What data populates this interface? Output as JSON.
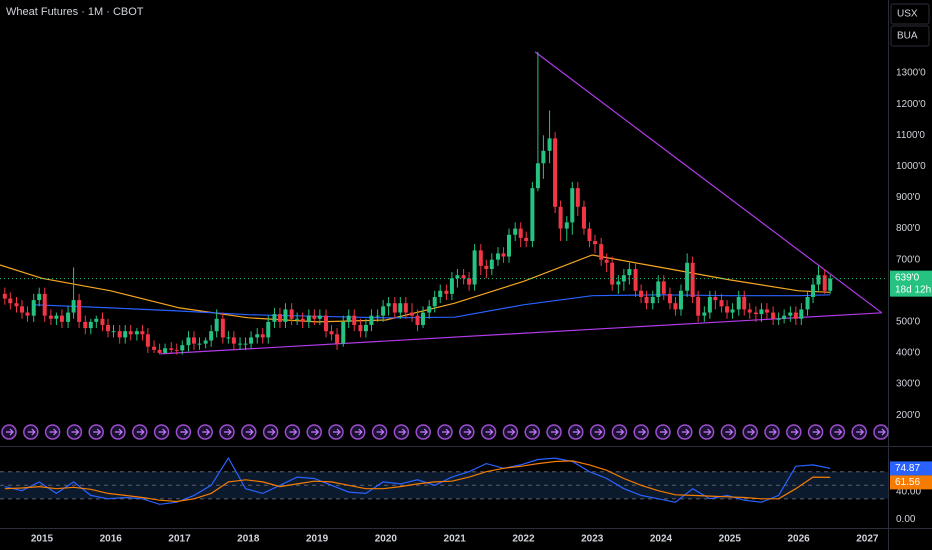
{
  "chart_data": [
    {
      "type": "candlestick",
      "title": "Wheat Futures · 1M · CBOT",
      "currency": "USX",
      "unit": "BUA",
      "up_color": "#26c281",
      "down_color": "#f23645",
      "xlim": [
        2014.39,
        2027.3
      ],
      "ylim": [
        178,
        1535
      ],
      "grid": false,
      "yticks": [
        {
          "value": 200,
          "label": "200'0"
        },
        {
          "value": 300,
          "label": "300'0"
        },
        {
          "value": 400,
          "label": "400'0"
        },
        {
          "value": 500,
          "label": "500'0"
        },
        {
          "value": 700,
          "label": "700'0"
        },
        {
          "value": 800,
          "label": "800'0"
        },
        {
          "value": 900,
          "label": "900'0"
        },
        {
          "value": 1000,
          "label": "1000'0"
        },
        {
          "value": 1100,
          "label": "1100'0"
        },
        {
          "value": 1200,
          "label": "1200'0"
        },
        {
          "value": 1300,
          "label": "1300'0"
        }
      ],
      "x": [
        2014.46,
        2014.54,
        2014.63,
        2014.71,
        2014.79,
        2014.88,
        2014.96,
        2015.04,
        2015.13,
        2015.21,
        2015.29,
        2015.38,
        2015.46,
        2015.54,
        2015.63,
        2015.71,
        2015.79,
        2015.88,
        2015.96,
        2016.04,
        2016.13,
        2016.21,
        2016.29,
        2016.38,
        2016.46,
        2016.54,
        2016.63,
        2016.71,
        2016.79,
        2016.88,
        2016.96,
        2017.04,
        2017.13,
        2017.21,
        2017.29,
        2017.38,
        2017.46,
        2017.54,
        2017.63,
        2017.71,
        2017.79,
        2017.88,
        2017.96,
        2018.04,
        2018.13,
        2018.21,
        2018.29,
        2018.38,
        2018.46,
        2018.54,
        2018.63,
        2018.71,
        2018.79,
        2018.88,
        2018.96,
        2019.04,
        2019.13,
        2019.21,
        2019.29,
        2019.38,
        2019.46,
        2019.54,
        2019.63,
        2019.71,
        2019.79,
        2019.88,
        2019.96,
        2020.04,
        2020.13,
        2020.21,
        2020.29,
        2020.38,
        2020.46,
        2020.54,
        2020.63,
        2020.71,
        2020.79,
        2020.88,
        2020.96,
        2021.04,
        2021.13,
        2021.21,
        2021.29,
        2021.38,
        2021.46,
        2021.54,
        2021.63,
        2021.71,
        2021.79,
        2021.88,
        2021.96,
        2022.04,
        2022.13,
        2022.21,
        2022.29,
        2022.38,
        2022.46,
        2022.54,
        2022.63,
        2022.71,
        2022.79,
        2022.88,
        2022.96,
        2023.04,
        2023.13,
        2023.21,
        2023.29,
        2023.38,
        2023.46,
        2023.54,
        2023.63,
        2023.71,
        2023.79,
        2023.88,
        2023.96,
        2024.04,
        2024.13,
        2024.21,
        2024.29,
        2024.38,
        2024.46,
        2024.54,
        2024.63,
        2024.71,
        2024.79,
        2024.88,
        2024.96,
        2025.04,
        2025.13,
        2025.21,
        2025.29,
        2025.38,
        2025.46,
        2025.54,
        2025.63,
        2025.71,
        2025.79,
        2025.88,
        2025.96,
        2026.04,
        2026.13,
        2026.21,
        2026.29,
        2026.38,
        2026.46
      ],
      "open": [
        590,
        575,
        560,
        550,
        530,
        520,
        570,
        590,
        520,
        510,
        520,
        500,
        530,
        570,
        500,
        480,
        500,
        510,
        490,
        470,
        470,
        450,
        470,
        460,
        470,
        460,
        420,
        410,
        400,
        415,
        410,
        408,
        425,
        450,
        430,
        430,
        440,
        470,
        510,
        450,
        450,
        430,
        430,
        430,
        450,
        460,
        450,
        500,
        525,
        500,
        540,
        510,
        510,
        500,
        520,
        510,
        520,
        470,
        460,
        430,
        500,
        520,
        490,
        470,
        490,
        520,
        520,
        550,
        560,
        530,
        560,
        530,
        520,
        490,
        530,
        550,
        580,
        600,
        590,
        640,
        650,
        640,
        620,
        730,
        680,
        670,
        700,
        720,
        710,
        780,
        800,
        770,
        760,
        930,
        1010,
        1050,
        1090,
        870,
        800,
        820,
        930,
        870,
        800,
        760,
        750,
        700,
        690,
        620,
        630,
        650,
        670,
        600,
        580,
        560,
        580,
        630,
        590,
        560,
        540,
        600,
        690,
        580,
        520,
        530,
        580,
        570,
        550,
        530,
        540,
        580,
        540,
        530,
        525,
        540,
        530,
        510,
        510,
        520,
        530,
        510,
        540,
        580,
        620,
        650,
        600
      ],
      "high": [
        610,
        595,
        580,
        570,
        550,
        590,
        610,
        610,
        540,
        530,
        540,
        550,
        675,
        590,
        520,
        510,
        520,
        530,
        510,
        490,
        490,
        490,
        490,
        480,
        490,
        480,
        440,
        430,
        430,
        435,
        430,
        440,
        470,
        470,
        450,
        450,
        490,
        540,
        530,
        470,
        470,
        450,
        450,
        470,
        480,
        480,
        520,
        545,
        545,
        560,
        560,
        530,
        530,
        540,
        540,
        540,
        540,
        490,
        480,
        520,
        540,
        540,
        510,
        510,
        540,
        540,
        570,
        580,
        580,
        580,
        580,
        560,
        540,
        550,
        570,
        600,
        620,
        620,
        660,
        670,
        670,
        660,
        750,
        750,
        700,
        720,
        740,
        740,
        800,
        820,
        820,
        790,
        950,
        1368,
        1100,
        1180,
        1110,
        890,
        840,
        950,
        950,
        890,
        820,
        780,
        770,
        720,
        710,
        650,
        670,
        690,
        690,
        620,
        600,
        600,
        650,
        650,
        610,
        580,
        620,
        720,
        710,
        600,
        550,
        600,
        600,
        590,
        570,
        560,
        600,
        600,
        560,
        550,
        560,
        560,
        550,
        530,
        540,
        550,
        550,
        560,
        600,
        640,
        680,
        670,
        650
      ],
      "low": [
        555,
        540,
        530,
        510,
        500,
        500,
        550,
        500,
        490,
        490,
        480,
        480,
        510,
        480,
        460,
        460,
        480,
        470,
        450,
        450,
        430,
        430,
        440,
        440,
        440,
        400,
        400,
        395,
        398,
        400,
        395,
        395,
        405,
        410,
        410,
        415,
        420,
        450,
        430,
        430,
        410,
        410,
        410,
        415,
        430,
        430,
        430,
        480,
        480,
        480,
        490,
        490,
        480,
        480,
        490,
        490,
        450,
        440,
        410,
        420,
        480,
        470,
        450,
        450,
        470,
        500,
        500,
        520,
        510,
        510,
        510,
        500,
        470,
        480,
        510,
        530,
        560,
        570,
        570,
        610,
        620,
        600,
        600,
        650,
        640,
        650,
        680,
        690,
        690,
        760,
        740,
        740,
        740,
        920,
        960,
        1010,
        850,
        760,
        760,
        780,
        840,
        780,
        740,
        720,
        680,
        660,
        600,
        590,
        600,
        620,
        580,
        560,
        540,
        540,
        560,
        570,
        540,
        520,
        520,
        580,
        560,
        500,
        500,
        510,
        540,
        530,
        510,
        510,
        520,
        520,
        510,
        500,
        500,
        510,
        490,
        490,
        495,
        500,
        490,
        490,
        520,
        560,
        600,
        590,
        590
      ],
      "close": [
        575,
        560,
        550,
        530,
        520,
        570,
        590,
        520,
        510,
        520,
        500,
        530,
        570,
        500,
        480,
        500,
        510,
        490,
        470,
        470,
        450,
        470,
        460,
        470,
        460,
        420,
        410,
        400,
        415,
        410,
        408,
        425,
        450,
        430,
        430,
        440,
        470,
        510,
        450,
        450,
        430,
        430,
        430,
        450,
        460,
        450,
        500,
        525,
        500,
        540,
        510,
        510,
        500,
        520,
        510,
        520,
        470,
        460,
        430,
        500,
        520,
        490,
        470,
        490,
        520,
        520,
        550,
        560,
        530,
        560,
        530,
        520,
        490,
        530,
        550,
        580,
        600,
        590,
        640,
        650,
        640,
        620,
        730,
        680,
        670,
        700,
        720,
        710,
        780,
        800,
        770,
        760,
        930,
        1010,
        1050,
        1090,
        870,
        800,
        820,
        930,
        870,
        800,
        760,
        750,
        700,
        690,
        620,
        630,
        650,
        670,
        600,
        580,
        560,
        580,
        630,
        590,
        560,
        540,
        600,
        690,
        580,
        520,
        530,
        580,
        570,
        550,
        530,
        540,
        580,
        540,
        530,
        525,
        540,
        530,
        510,
        510,
        520,
        530,
        510,
        540,
        580,
        620,
        650,
        600,
        639
      ],
      "lines": [
        {
          "color": "#f5a623",
          "x": [
            2014.39,
            2015,
            2016,
            2017,
            2018,
            2019,
            2020,
            2021,
            2022,
            2023,
            2024,
            2025,
            2026,
            2026.46
          ],
          "values": [
            683,
            640,
            600,
            545,
            513,
            500,
            506,
            560,
            630,
            715,
            675,
            635,
            600,
            595
          ]
        },
        {
          "color": "#2962ff",
          "x": [
            2014.9,
            2016,
            2017,
            2018,
            2019,
            2020,
            2021,
            2022,
            2023,
            2024,
            2025,
            2026,
            2026.46
          ],
          "values": [
            555,
            545,
            535,
            523,
            518,
            513,
            515,
            555,
            584,
            587,
            584,
            584,
            587
          ]
        }
      ],
      "trendlines": [
        {
          "color": "#b23ae8",
          "x": [
            2022.17,
            2027.21
          ],
          "values": [
            1368,
            529
          ]
        },
        {
          "color": "#b23ae8",
          "x": [
            2016.72,
            2027.21
          ],
          "values": [
            397,
            529
          ]
        }
      ],
      "last_price": {
        "value": 639,
        "label": "639'0"
      },
      "countdown": "18d 12h"
    },
    {
      "type": "line",
      "xlim": [
        2014.39,
        2027.3
      ],
      "ylim": [
        -13,
        102
      ],
      "xticks": [
        2015,
        2016,
        2017,
        2018,
        2019,
        2020,
        2021,
        2022,
        2023,
        2024,
        2025,
        2026,
        2027
      ],
      "yticks": [
        {
          "value": 40,
          "label": "40.00"
        },
        {
          "value": 0,
          "label": "0.00"
        }
      ],
      "levels": [
        70,
        50,
        30
      ],
      "x": [
        2014.46,
        2014.71,
        2014.96,
        2015.21,
        2015.46,
        2015.71,
        2015.96,
        2016.21,
        2016.46,
        2016.71,
        2016.96,
        2017.21,
        2017.46,
        2017.71,
        2017.96,
        2018.21,
        2018.46,
        2018.71,
        2018.96,
        2019.21,
        2019.46,
        2019.71,
        2019.96,
        2020.21,
        2020.46,
        2020.71,
        2020.96,
        2021.21,
        2021.46,
        2021.71,
        2021.96,
        2022.21,
        2022.46,
        2022.71,
        2022.96,
        2023.21,
        2023.46,
        2023.71,
        2023.96,
        2024.21,
        2024.46,
        2024.71,
        2024.96,
        2025.21,
        2025.46,
        2025.71,
        2025.96,
        2026.21,
        2026.46
      ],
      "series": [
        {
          "color": "#2962ff",
          "values": [
            48,
            42,
            55,
            38,
            55,
            35,
            30,
            32,
            30,
            22,
            25,
            35,
            50,
            90,
            45,
            38,
            50,
            62,
            60,
            50,
            40,
            38,
            55,
            52,
            58,
            50,
            62,
            70,
            82,
            75,
            80,
            88,
            90,
            85,
            70,
            60,
            45,
            35,
            30,
            25,
            45,
            30,
            35,
            28,
            25,
            35,
            78,
            80,
            74.87
          ]
        },
        {
          "color": "#f57c00",
          "values": [
            45,
            46,
            48,
            45,
            47,
            44,
            38,
            35,
            32,
            28,
            26,
            30,
            38,
            55,
            58,
            55,
            48,
            52,
            56,
            55,
            50,
            45,
            45,
            48,
            52,
            55,
            56,
            62,
            70,
            75,
            78,
            82,
            85,
            86,
            80,
            72,
            60,
            50,
            42,
            36,
            35,
            34,
            33,
            32,
            30,
            30,
            45,
            62,
            61.56
          ]
        }
      ]
    }
  ]
}
